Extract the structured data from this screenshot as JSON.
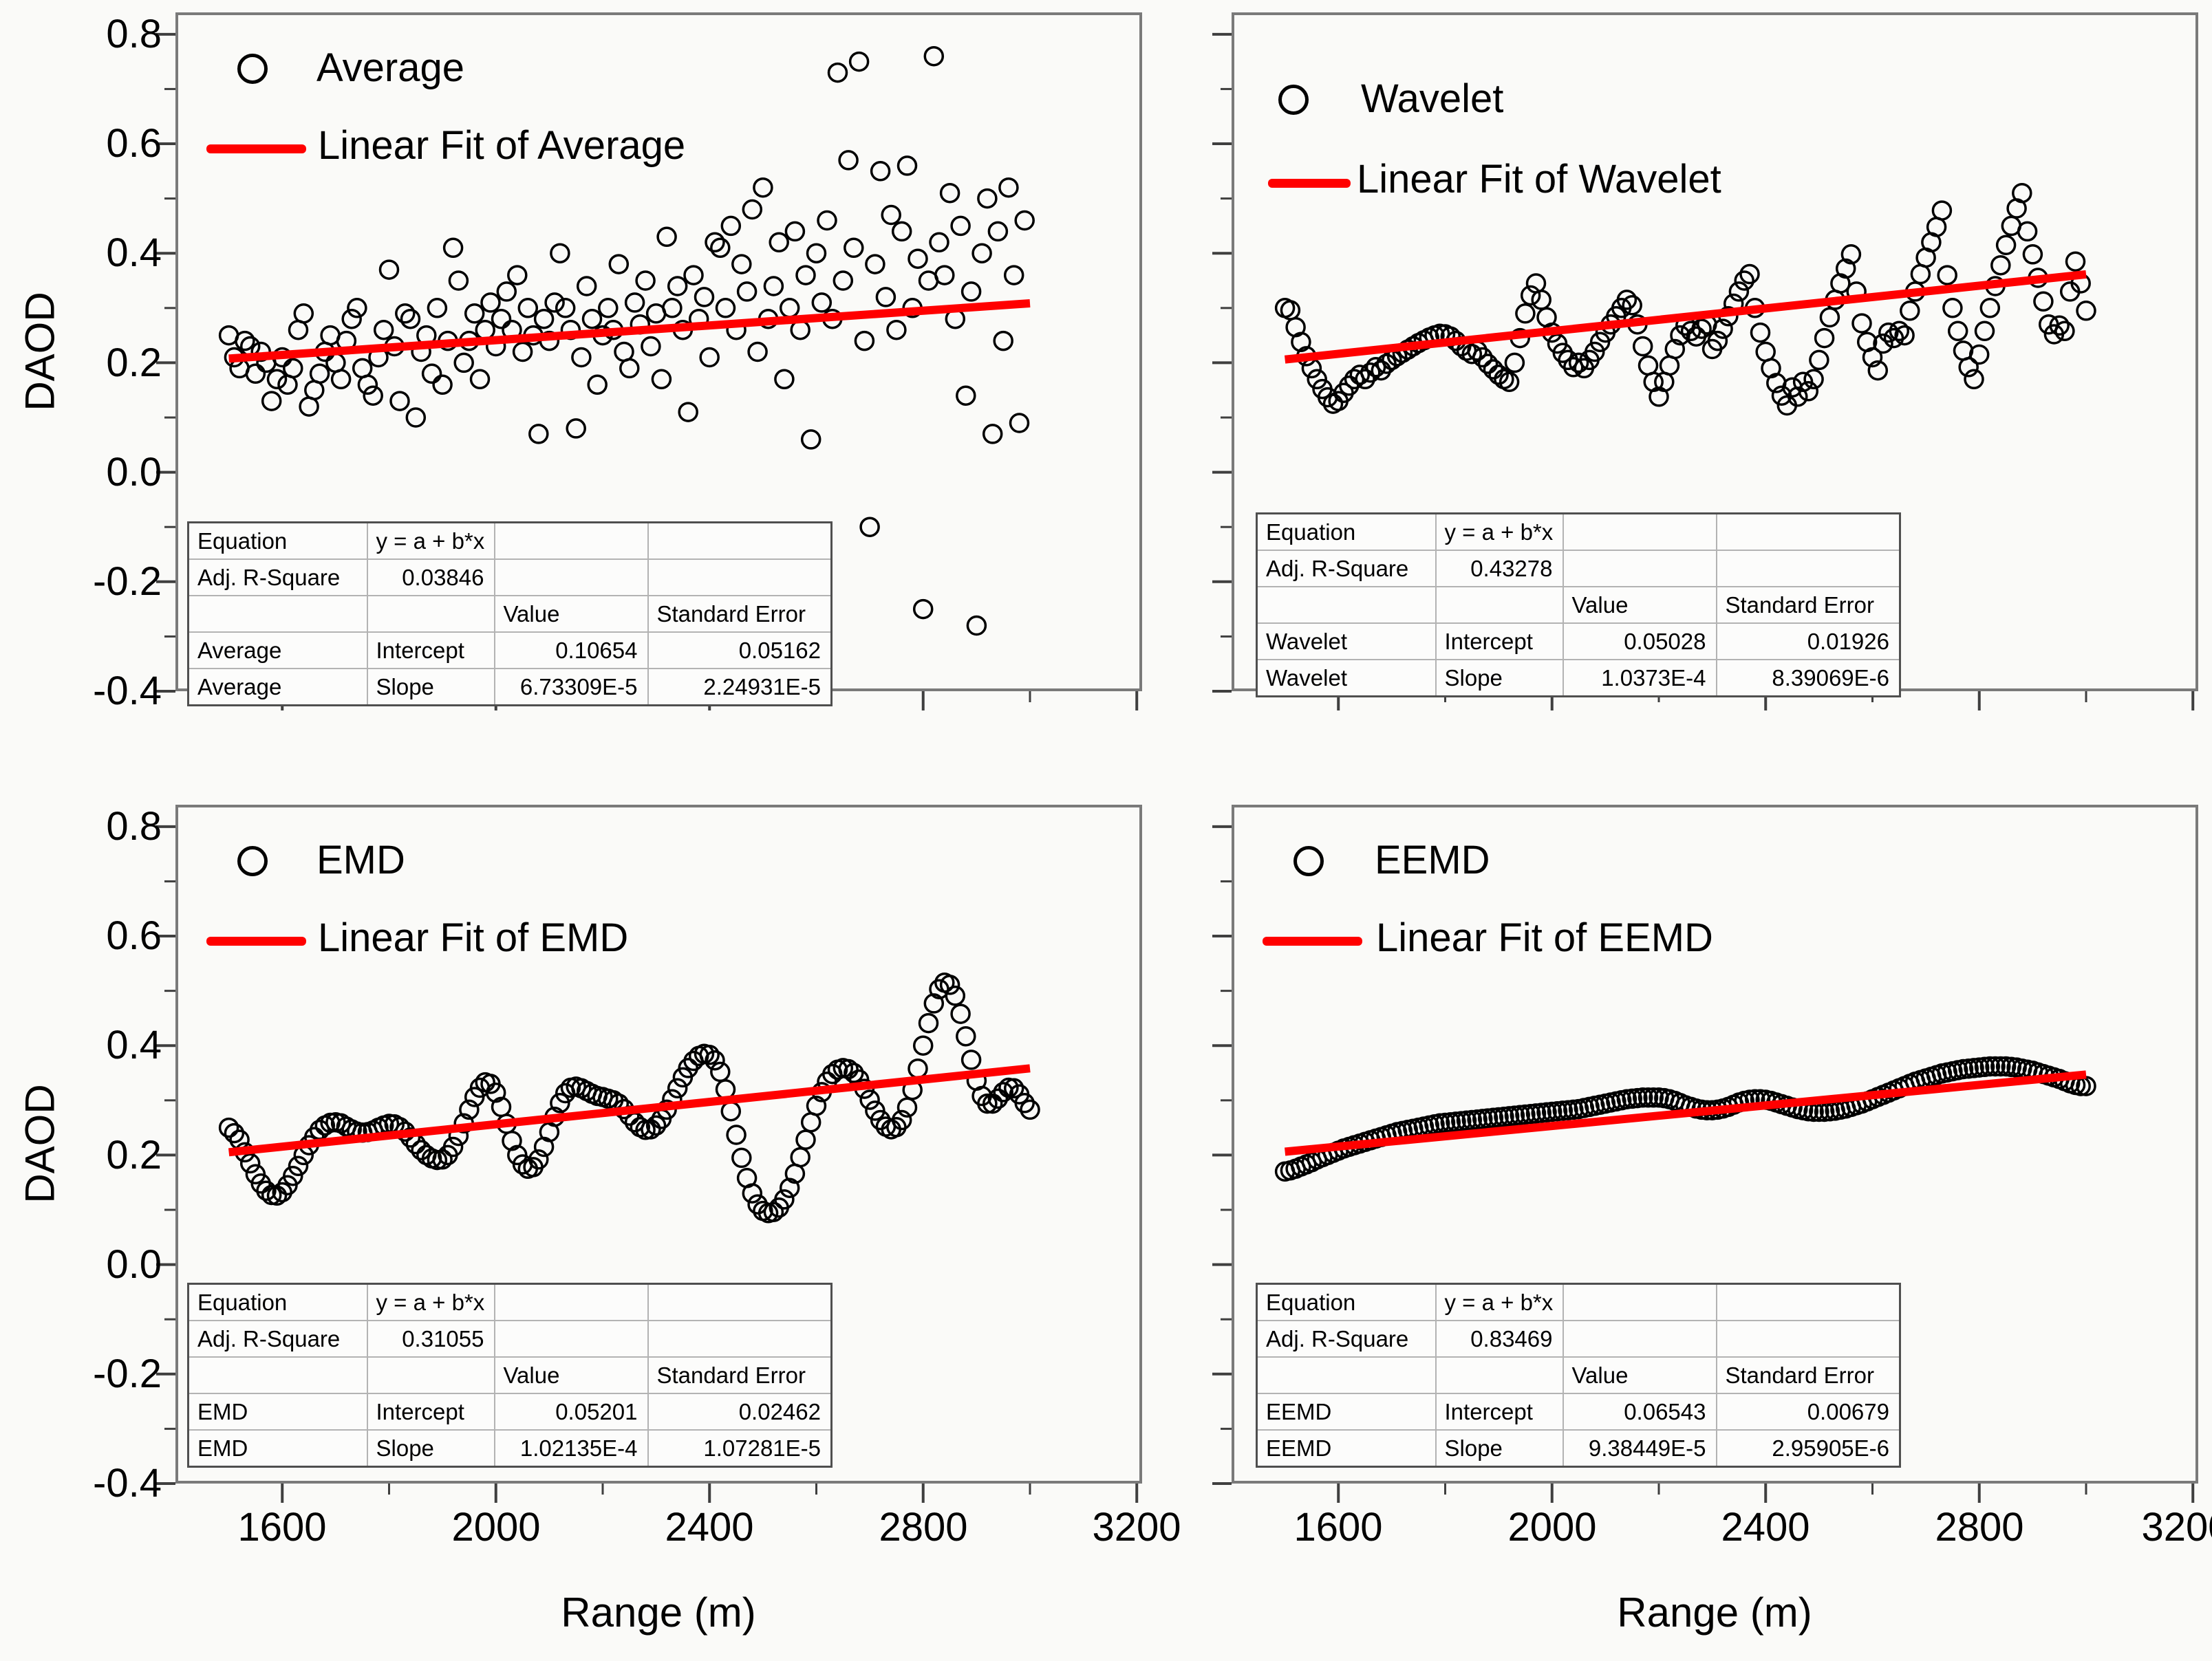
{
  "page": {
    "background": "#fafaf8"
  },
  "colors": {
    "fit_line": "#ff0000",
    "marker_stroke": "#000000",
    "frame": "#7a7a7a",
    "tick": "#3f3f3f"
  },
  "axes": {
    "x_label": "Range (m)",
    "y_label": "DAOD",
    "x_tick_labels": [
      "1600",
      "2000",
      "2400",
      "2800",
      "3200"
    ],
    "x_tick_values": [
      1600,
      2000,
      2400,
      2800,
      3200
    ],
    "x_minor_ticks": [
      1800,
      2200,
      2600,
      3000
    ],
    "y_tick_labels": [
      "0.8",
      "0.6",
      "0.4",
      "0.2",
      "0.0",
      "-0.2",
      "-0.4"
    ],
    "y_tick_values": [
      0.8,
      0.6,
      0.4,
      0.2,
      0.0,
      -0.2,
      -0.4
    ],
    "y_minor_ticks": [
      0.7,
      0.5,
      0.3,
      0.1,
      -0.1,
      -0.3
    ],
    "x_range": [
      1400,
      3210
    ],
    "y_range": [
      -0.4,
      0.84
    ]
  },
  "panels": [
    {
      "id": "average",
      "legend": {
        "marker_label": "Average",
        "fit_label": "Linear Fit of Average"
      },
      "table": {
        "rows": [
          {
            "cells": [
              "Equation",
              "y = a + b*x",
              "",
              ""
            ]
          },
          {
            "cells": [
              "Adj. R-Square",
              "0.03846",
              "",
              ""
            ]
          },
          {
            "cells": [
              "",
              "",
              "Value",
              "Standard Error"
            ]
          },
          {
            "cells": [
              "Average",
              "Intercept",
              "0.10654",
              "0.05162"
            ]
          },
          {
            "cells": [
              "Average",
              "Slope",
              "6.73309E-5",
              "2.24931E-5"
            ]
          }
        ]
      }
    },
    {
      "id": "wavelet",
      "legend": {
        "marker_label": "Wavelet",
        "fit_label": "Linear Fit of Wavelet"
      },
      "table": {
        "rows": [
          {
            "cells": [
              "Equation",
              "y = a + b*x",
              "",
              ""
            ]
          },
          {
            "cells": [
              "Adj. R-Square",
              "0.43278",
              "",
              ""
            ]
          },
          {
            "cells": [
              "",
              "",
              "Value",
              "Standard Error"
            ]
          },
          {
            "cells": [
              "Wavelet",
              "Intercept",
              "0.05028",
              "0.01926"
            ]
          },
          {
            "cells": [
              "Wavelet",
              "Slope",
              "1.0373E-4",
              "8.39069E-6"
            ]
          }
        ]
      }
    },
    {
      "id": "emd",
      "legend": {
        "marker_label": "EMD",
        "fit_label": "Linear Fit of EMD"
      },
      "table": {
        "rows": [
          {
            "cells": [
              "Equation",
              "y = a + b*x",
              "",
              ""
            ]
          },
          {
            "cells": [
              "Adj. R-Square",
              "0.31055",
              "",
              ""
            ]
          },
          {
            "cells": [
              "",
              "",
              "Value",
              "Standard Error"
            ]
          },
          {
            "cells": [
              "EMD",
              "Intercept",
              "0.05201",
              "0.02462"
            ]
          },
          {
            "cells": [
              "EMD",
              "Slope",
              "1.02135E-4",
              "1.07281E-5"
            ]
          }
        ]
      }
    },
    {
      "id": "eemd",
      "legend": {
        "marker_label": "EEMD",
        "fit_label": "Linear Fit of EEMD"
      },
      "table": {
        "rows": [
          {
            "cells": [
              "Equation",
              "y = a + b*x",
              "",
              ""
            ]
          },
          {
            "cells": [
              "Adj. R-Square",
              "0.83469",
              "",
              ""
            ]
          },
          {
            "cells": [
              "",
              "",
              "Value",
              "Standard Error"
            ]
          },
          {
            "cells": [
              "EEMD",
              "Intercept",
              "0.06543",
              "0.00679"
            ]
          },
          {
            "cells": [
              "EEMD",
              "Slope",
              "9.38449E-5",
              "2.95905E-6"
            ]
          }
        ]
      }
    }
  ],
  "chart_data": [
    {
      "type": "scatter",
      "name": "Average",
      "xlabel": "Range (m)",
      "ylabel": "DAOD",
      "xlim": [
        1400,
        3210
      ],
      "ylim": [
        -0.4,
        0.84
      ],
      "x_start": 1500,
      "x_step": 10,
      "y": [
        0.25,
        0.21,
        0.19,
        0.24,
        0.23,
        0.18,
        0.22,
        0.2,
        0.13,
        0.17,
        0.21,
        0.16,
        0.19,
        0.26,
        0.29,
        0.12,
        0.15,
        0.18,
        0.22,
        0.25,
        0.2,
        0.17,
        0.24,
        0.28,
        0.3,
        0.19,
        0.16,
        0.14,
        0.21,
        0.26,
        0.37,
        0.23,
        0.13,
        0.29,
        0.28,
        0.1,
        0.22,
        0.25,
        0.18,
        0.3,
        0.16,
        0.24,
        0.41,
        0.35,
        0.2,
        0.24,
        0.29,
        0.17,
        0.26,
        0.31,
        0.23,
        0.28,
        0.33,
        0.26,
        0.36,
        0.22,
        0.3,
        0.25,
        0.07,
        0.28,
        0.24,
        0.31,
        0.4,
        0.3,
        0.26,
        0.08,
        0.21,
        0.34,
        0.28,
        0.16,
        0.25,
        0.3,
        0.26,
        0.38,
        0.22,
        0.19,
        0.31,
        0.27,
        0.35,
        0.23,
        0.29,
        0.17,
        0.43,
        0.3,
        0.34,
        0.26,
        0.11,
        0.36,
        0.28,
        0.32,
        0.21,
        0.42,
        0.41,
        0.3,
        0.45,
        0.26,
        0.38,
        0.33,
        0.48,
        0.22,
        0.52,
        0.28,
        0.34,
        0.42,
        0.17,
        0.3,
        0.44,
        0.26,
        0.36,
        0.06,
        0.4,
        0.31,
        0.46,
        0.28,
        0.73,
        0.35,
        0.57,
        0.41,
        0.75,
        0.24,
        -0.1,
        0.38,
        0.55,
        0.32,
        0.47,
        0.26,
        0.44,
        0.56,
        0.3,
        0.39,
        -0.25,
        0.35,
        0.76,
        0.42,
        0.36,
        0.51,
        0.28,
        0.45,
        0.14,
        0.33,
        -0.28,
        0.4,
        0.5,
        0.07,
        0.44,
        0.24,
        0.52,
        0.36,
        0.09,
        0.46
      ],
      "fit": {
        "type": "linear",
        "intercept": 0.10654,
        "slope": 6.73309e-05,
        "x_from": 1500,
        "x_to": 3000
      }
    },
    {
      "type": "scatter",
      "name": "Wavelet",
      "xlabel": "Range (m)",
      "ylabel": "DAOD",
      "xlim": [
        1400,
        3210
      ],
      "ylim": [
        -0.4,
        0.84
      ],
      "x_start": 1500,
      "x_step": 10,
      "y": [
        0.3,
        0.296,
        0.265,
        0.238,
        0.212,
        0.19,
        0.17,
        0.152,
        0.137,
        0.125,
        0.13,
        0.145,
        0.158,
        0.17,
        0.178,
        0.17,
        0.182,
        0.192,
        0.186,
        0.198,
        0.205,
        0.212,
        0.218,
        0.224,
        0.23,
        0.236,
        0.241,
        0.246,
        0.25,
        0.253,
        0.252,
        0.248,
        0.24,
        0.23,
        0.222,
        0.216,
        0.222,
        0.21,
        0.198,
        0.188,
        0.178,
        0.17,
        0.165,
        0.2,
        0.245,
        0.29,
        0.323,
        0.345,
        0.315,
        0.283,
        0.255,
        0.235,
        0.218,
        0.205,
        0.192,
        0.2,
        0.19,
        0.205,
        0.22,
        0.238,
        0.255,
        0.27,
        0.285,
        0.3,
        0.315,
        0.305,
        0.27,
        0.23,
        0.195,
        0.165,
        0.138,
        0.165,
        0.195,
        0.225,
        0.25,
        0.268,
        0.258,
        0.248,
        0.262,
        0.27,
        0.225,
        0.24,
        0.262,
        0.285,
        0.308,
        0.33,
        0.35,
        0.362,
        0.3,
        0.255,
        0.22,
        0.19,
        0.163,
        0.14,
        0.122,
        0.155,
        0.138,
        0.165,
        0.148,
        0.17,
        0.205,
        0.245,
        0.283,
        0.315,
        0.345,
        0.372,
        0.398,
        0.33,
        0.272,
        0.238,
        0.21,
        0.186,
        0.235,
        0.255,
        0.245,
        0.258,
        0.25,
        0.295,
        0.33,
        0.362,
        0.392,
        0.42,
        0.448,
        0.478,
        0.36,
        0.3,
        0.258,
        0.222,
        0.192,
        0.17,
        0.215,
        0.258,
        0.3,
        0.34,
        0.378,
        0.415,
        0.45,
        0.482,
        0.51,
        0.44,
        0.398,
        0.355,
        0.312,
        0.27,
        0.252,
        0.268,
        0.258,
        0.33,
        0.385,
        0.345,
        0.295
      ],
      "fit": {
        "type": "linear",
        "intercept": 0.05028,
        "slope": 0.00010373,
        "x_from": 1500,
        "x_to": 3000
      }
    },
    {
      "type": "scatter",
      "name": "EMD",
      "xlabel": "Range (m)",
      "ylabel": "DAOD",
      "xlim": [
        1400,
        3210
      ],
      "ylim": [
        -0.4,
        0.84
      ],
      "x_start": 1500,
      "x_step": 10,
      "y": [
        0.25,
        0.24,
        0.228,
        0.205,
        0.185,
        0.165,
        0.148,
        0.135,
        0.127,
        0.126,
        0.132,
        0.145,
        0.162,
        0.18,
        0.2,
        0.218,
        0.233,
        0.246,
        0.254,
        0.259,
        0.26,
        0.258,
        0.252,
        0.247,
        0.243,
        0.241,
        0.242,
        0.245,
        0.25,
        0.254,
        0.257,
        0.256,
        0.251,
        0.243,
        0.232,
        0.22,
        0.209,
        0.2,
        0.194,
        0.191,
        0.192,
        0.2,
        0.215,
        0.235,
        0.258,
        0.283,
        0.306,
        0.323,
        0.333,
        0.33,
        0.314,
        0.288,
        0.257,
        0.226,
        0.2,
        0.183,
        0.175,
        0.178,
        0.192,
        0.215,
        0.242,
        0.27,
        0.295,
        0.313,
        0.323,
        0.325,
        0.322,
        0.317,
        0.312,
        0.308,
        0.306,
        0.303,
        0.3,
        0.294,
        0.284,
        0.272,
        0.26,
        0.251,
        0.246,
        0.247,
        0.254,
        0.266,
        0.283,
        0.302,
        0.322,
        0.342,
        0.359,
        0.372,
        0.381,
        0.385,
        0.383,
        0.373,
        0.352,
        0.32,
        0.28,
        0.237,
        0.195,
        0.158,
        0.13,
        0.11,
        0.098,
        0.094,
        0.096,
        0.104,
        0.119,
        0.14,
        0.166,
        0.196,
        0.228,
        0.26,
        0.29,
        0.315,
        0.334,
        0.348,
        0.356,
        0.359,
        0.357,
        0.35,
        0.338,
        0.321,
        0.301,
        0.281,
        0.264,
        0.252,
        0.247,
        0.251,
        0.264,
        0.287,
        0.319,
        0.358,
        0.4,
        0.441,
        0.477,
        0.503,
        0.515,
        0.511,
        0.491,
        0.458,
        0.417,
        0.374,
        0.336,
        0.308,
        0.294,
        0.294,
        0.303,
        0.315,
        0.323,
        0.322,
        0.311,
        0.295,
        0.283
      ],
      "fit": {
        "type": "linear",
        "intercept": 0.05201,
        "slope": 0.000102135,
        "x_from": 1500,
        "x_to": 3000
      }
    },
    {
      "type": "scatter",
      "name": "EEMD",
      "xlabel": "Range (m)",
      "ylabel": "DAOD",
      "xlim": [
        1400,
        3210
      ],
      "ylim": [
        -0.4,
        0.84
      ],
      "x_start": 1500,
      "x_step": 10,
      "y": [
        0.17,
        0.172,
        0.175,
        0.179,
        0.183,
        0.187,
        0.192,
        0.196,
        0.2,
        0.204,
        0.208,
        0.212,
        0.215,
        0.218,
        0.221,
        0.224,
        0.227,
        0.23,
        0.233,
        0.236,
        0.239,
        0.242,
        0.244,
        0.246,
        0.248,
        0.25,
        0.252,
        0.254,
        0.256,
        0.258,
        0.259,
        0.26,
        0.261,
        0.262,
        0.263,
        0.264,
        0.265,
        0.266,
        0.267,
        0.268,
        0.269,
        0.27,
        0.271,
        0.272,
        0.273,
        0.274,
        0.275,
        0.276,
        0.277,
        0.278,
        0.279,
        0.28,
        0.281,
        0.282,
        0.283,
        0.284,
        0.286,
        0.288,
        0.29,
        0.292,
        0.294,
        0.296,
        0.298,
        0.3,
        0.302,
        0.303,
        0.304,
        0.305,
        0.305,
        0.305,
        0.305,
        0.304,
        0.302,
        0.299,
        0.295,
        0.291,
        0.288,
        0.285,
        0.283,
        0.282,
        0.282,
        0.283,
        0.285,
        0.288,
        0.292,
        0.296,
        0.299,
        0.301,
        0.302,
        0.302,
        0.301,
        0.299,
        0.296,
        0.293,
        0.29,
        0.287,
        0.284,
        0.282,
        0.28,
        0.279,
        0.279,
        0.279,
        0.28,
        0.281,
        0.283,
        0.285,
        0.288,
        0.291,
        0.294,
        0.298,
        0.302,
        0.306,
        0.31,
        0.314,
        0.318,
        0.322,
        0.326,
        0.33,
        0.334,
        0.337,
        0.34,
        0.343,
        0.346,
        0.349,
        0.351,
        0.353,
        0.355,
        0.357,
        0.358,
        0.359,
        0.36,
        0.361,
        0.362,
        0.362,
        0.362,
        0.362,
        0.361,
        0.36,
        0.358,
        0.356,
        0.354,
        0.351,
        0.348,
        0.345,
        0.342,
        0.339,
        0.335,
        0.331,
        0.328,
        0.326,
        0.326
      ],
      "fit": {
        "type": "linear",
        "intercept": 0.06543,
        "slope": 9.38449e-05,
        "x_from": 1500,
        "x_to": 3000
      }
    }
  ]
}
